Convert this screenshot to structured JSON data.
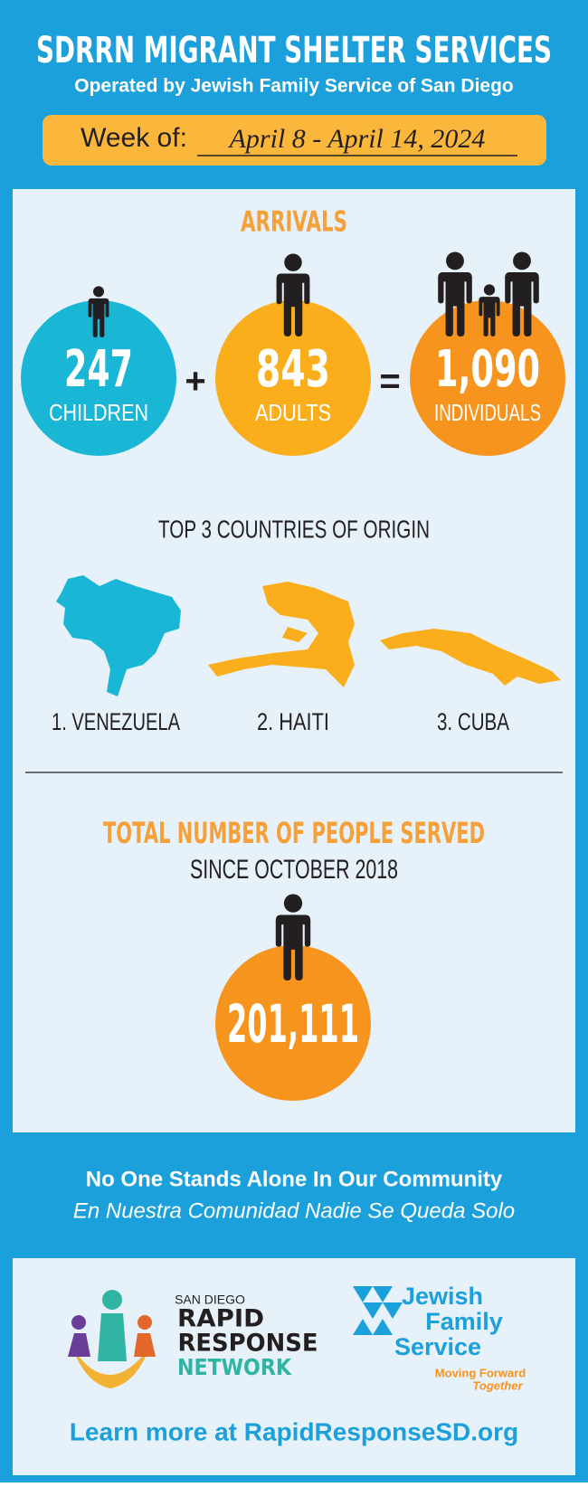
{
  "header": {
    "title": "SDRRN MIGRANT SHELTER SERVICES",
    "subtitle": "Operated by Jewish Family Service of San Diego",
    "week_label": "Week of:",
    "week_dates": "April 8 - April 14, 2024"
  },
  "arrivals": {
    "title": "ARRIVALS",
    "items": [
      {
        "number": "247",
        "label": "CHILDREN"
      },
      {
        "number": "843",
        "label": "ADULTS"
      },
      {
        "number": "1,090",
        "label": "INDIVIDUALS"
      }
    ],
    "operators": [
      "+",
      "="
    ]
  },
  "countries": {
    "title": "TOP 3 COUNTRIES OF ORIGIN",
    "items": [
      "1. VENEZUELA",
      "2. HAITI",
      "3. CUBA"
    ]
  },
  "total": {
    "title": "TOTAL NUMBER OF PEOPLE SERVED",
    "subtitle": "SINCE OCTOBER 2018",
    "number": "201,111"
  },
  "footer": {
    "tagline_en": "No One Stands Alone In Our Community",
    "tagline_es": "En Nuestra Comunidad Nadie Se Queda Solo",
    "rrn_logo": [
      "SAN DIEGO",
      "RAPID",
      "RESPONSE",
      "NETWORK"
    ],
    "jfs_logo": [
      "Jewish",
      "Family",
      "Service",
      "Moving Forward",
      "Together"
    ],
    "link": "Learn more at RapidResponseSD.org"
  }
}
